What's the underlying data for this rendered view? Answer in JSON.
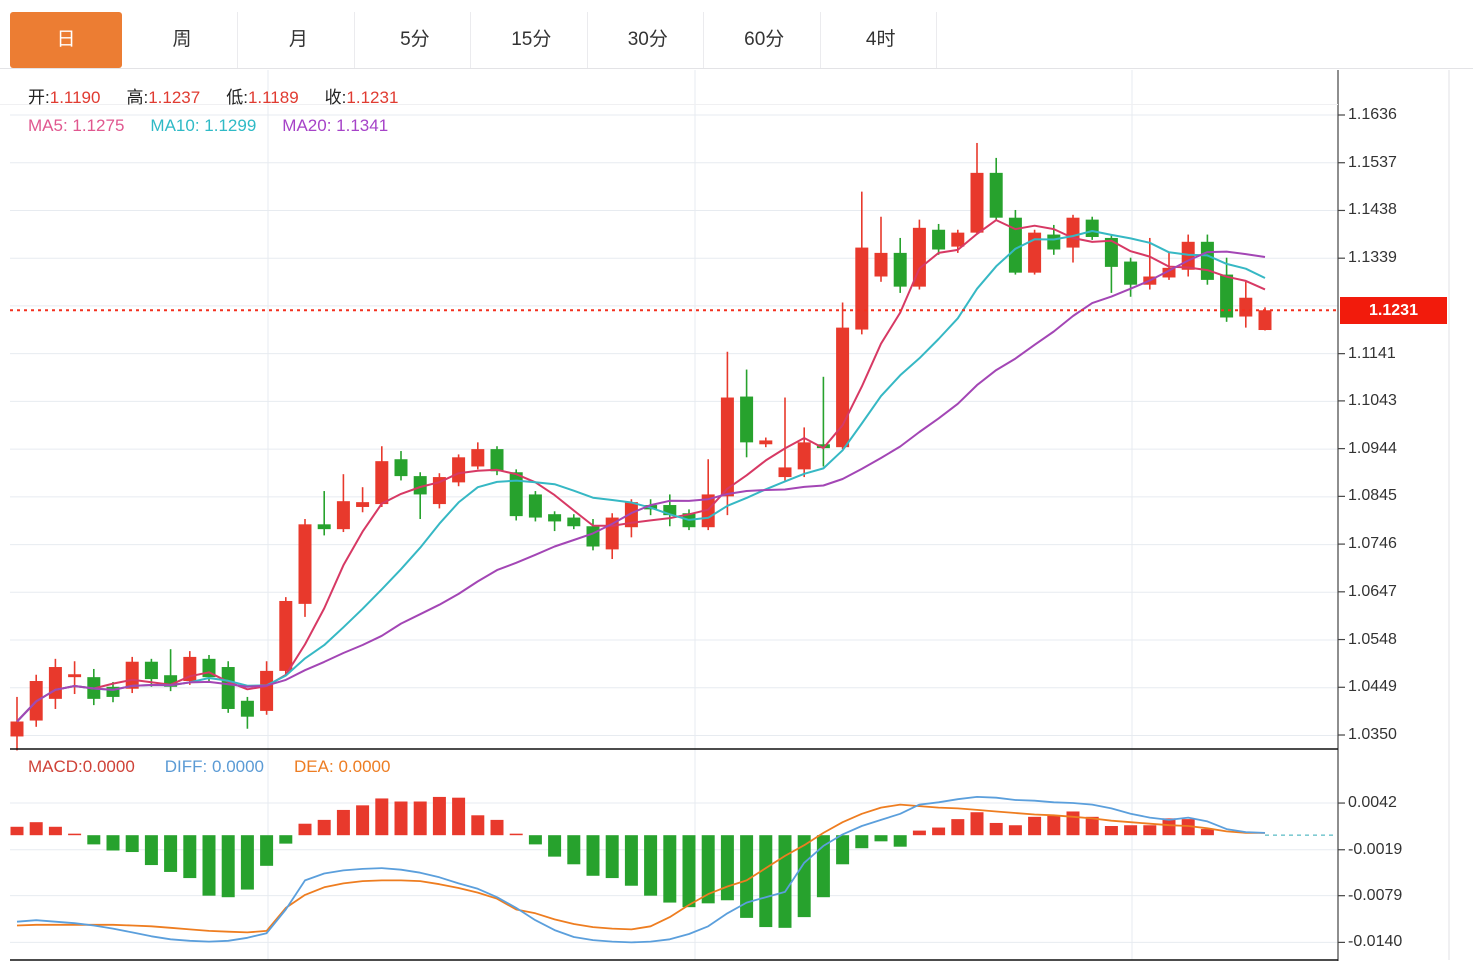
{
  "tabs": {
    "items": [
      {
        "label": "日",
        "active": true
      },
      {
        "label": "周",
        "active": false
      },
      {
        "label": "月",
        "active": false
      },
      {
        "label": "5分",
        "active": false
      },
      {
        "label": "15分",
        "active": false
      },
      {
        "label": "30分",
        "active": false
      },
      {
        "label": "60分",
        "active": false
      },
      {
        "label": "4时",
        "active": false
      }
    ]
  },
  "ohlc": {
    "o_label": "开:",
    "o": "1.1190",
    "h_label": "高:",
    "h": "1.1237",
    "l_label": "低:",
    "l": "1.1189",
    "c_label": "收:",
    "c": "1.1231"
  },
  "ma_legend": {
    "ma5_label": "MA5:",
    "ma5": "1.1275",
    "ma10_label": "MA10:",
    "ma10": "1.1299",
    "ma20_label": "MA20:",
    "ma20": "1.1341"
  },
  "macd_legend": {
    "macd_label": "MACD:",
    "macd": "0.0000",
    "diff_label": "DIFF:",
    "diff": "0.0000",
    "dea_label": "DEA:",
    "dea": "0.0000"
  },
  "price_axis": {
    "ticks": [
      "1.1636",
      "1.1537",
      "1.1438",
      "1.1339",
      "1.1141",
      "1.1043",
      "1.0944",
      "1.0845",
      "1.0746",
      "1.0647",
      "1.0548",
      "1.0449",
      "1.0350"
    ],
    "last_price_tag": "1.1231"
  },
  "macd_axis": {
    "ticks": [
      "0.0042",
      "-0.0019",
      "-0.0079",
      "-0.0140"
    ]
  },
  "colors": {
    "up": "#e8392c",
    "down": "#27a22d",
    "ma5": "#d73964",
    "ma10": "#36b8c4",
    "ma20": "#a346b5",
    "diff_line": "#5b9fdc",
    "dea_line": "#ee7d20",
    "last_price_line": "#f3301f",
    "tag_bg": "#f21b0c",
    "active_tab": "#ec7d33",
    "grid": "#e7ebf0",
    "axis": "#444444"
  },
  "chart_data": {
    "type": "candlestick",
    "title": "",
    "panels": [
      "price",
      "macd"
    ],
    "price_panel": {
      "ylim": [
        1.03,
        1.166
      ],
      "grid_step": 0.0099,
      "grid_top": 1.1636,
      "last_price": 1.1231,
      "ma_periods": [
        5,
        10,
        20
      ],
      "candles": [
        [
          1.0347,
          1.0429,
          1.0318,
          1.0378
        ],
        [
          1.038,
          1.0475,
          1.0367,
          1.0462
        ],
        [
          1.0425,
          1.0508,
          1.0404,
          1.0491
        ],
        [
          1.047,
          1.0503,
          1.0435,
          1.0476
        ],
        [
          1.047,
          1.0487,
          1.0412,
          1.0425
        ],
        [
          1.045,
          1.046,
          1.0418,
          1.0429
        ],
        [
          1.0446,
          1.0512,
          1.0437,
          1.0502
        ],
        [
          1.0502,
          1.0508,
          1.045,
          1.0466
        ],
        [
          1.0474,
          1.0528,
          1.0441,
          1.045
        ],
        [
          1.0462,
          1.0524,
          1.0454,
          1.0512
        ],
        [
          1.0508,
          1.0516,
          1.0462,
          1.047
        ],
        [
          1.0491,
          1.0503,
          1.0396,
          1.0404
        ],
        [
          1.0421,
          1.0429,
          1.0363,
          1.0388
        ],
        [
          1.04,
          1.0503,
          1.0392,
          1.0483
        ],
        [
          1.0483,
          1.0636,
          1.0475,
          1.0628
        ],
        [
          1.0622,
          1.0798,
          1.0595,
          1.0787
        ],
        [
          1.0787,
          1.0856,
          1.0764,
          1.0777
        ],
        [
          1.0777,
          1.0891,
          1.0771,
          1.0835
        ],
        [
          1.0823,
          1.0864,
          1.0812,
          1.0833
        ],
        [
          1.0829,
          1.0949,
          1.0823,
          1.0918
        ],
        [
          1.0922,
          1.0939,
          1.0878,
          1.0887
        ],
        [
          1.0887,
          1.0895,
          1.0798,
          1.0849
        ],
        [
          1.0829,
          1.0893,
          1.082,
          1.0885
        ],
        [
          1.0874,
          1.0932,
          1.0866,
          1.0926
        ],
        [
          1.0907,
          1.0957,
          1.0901,
          1.0943
        ],
        [
          1.0943,
          1.0949,
          1.0889,
          1.0897
        ],
        [
          1.0895,
          1.0901,
          1.0795,
          1.0804
        ],
        [
          1.0849,
          1.0856,
          1.0793,
          1.0801
        ],
        [
          1.0808,
          1.0814,
          1.0773,
          1.0793
        ],
        [
          1.0801,
          1.0808,
          1.0777,
          1.0783
        ],
        [
          1.0783,
          1.0798,
          1.0733,
          1.0741
        ],
        [
          1.0735,
          1.081,
          1.0715,
          1.0801
        ],
        [
          1.0781,
          1.0839,
          1.076,
          1.0833
        ],
        [
          1.0827,
          1.0839,
          1.0806,
          1.0818
        ],
        [
          1.0827,
          1.0849,
          1.0783,
          1.0806
        ],
        [
          1.081,
          1.0818,
          1.0775,
          1.0781
        ],
        [
          1.0781,
          1.0922,
          1.0775,
          1.0849
        ],
        [
          1.0845,
          1.1145,
          1.0806,
          1.105
        ],
        [
          1.1052,
          1.1108,
          1.0926,
          1.0957
        ],
        [
          1.0953,
          1.0967,
          1.0947,
          1.0961
        ],
        [
          1.0885,
          1.105,
          1.0878,
          1.0905
        ],
        [
          1.0901,
          1.0988,
          1.0885,
          1.0957
        ],
        [
          1.0953,
          1.1093,
          1.0907,
          1.0945
        ],
        [
          1.0947,
          1.1247,
          1.0943,
          1.1195
        ],
        [
          1.1191,
          1.1477,
          1.1181,
          1.1361
        ],
        [
          1.1301,
          1.1425,
          1.129,
          1.135
        ],
        [
          1.135,
          1.1381,
          1.1267,
          1.128
        ],
        [
          1.128,
          1.1419,
          1.1274,
          1.1402
        ],
        [
          1.1398,
          1.141,
          1.1346,
          1.1357
        ],
        [
          1.1363,
          1.1398,
          1.135,
          1.1392
        ],
        [
          1.1392,
          1.1578,
          1.1388,
          1.1516
        ],
        [
          1.1516,
          1.1547,
          1.1419,
          1.1423
        ],
        [
          1.1423,
          1.1439,
          1.1305,
          1.1309
        ],
        [
          1.1309,
          1.1398,
          1.1305,
          1.1392
        ],
        [
          1.1388,
          1.1408,
          1.1346,
          1.1357
        ],
        [
          1.1361,
          1.1429,
          1.133,
          1.1423
        ],
        [
          1.1419,
          1.1425,
          1.1377,
          1.1383
        ],
        [
          1.1381,
          1.1388,
          1.1267,
          1.1321
        ],
        [
          1.1332,
          1.134,
          1.1259,
          1.1284
        ],
        [
          1.1284,
          1.1381,
          1.1274,
          1.1301
        ],
        [
          1.1299,
          1.135,
          1.1294,
          1.1319
        ],
        [
          1.1315,
          1.1388,
          1.1301,
          1.1373
        ],
        [
          1.1373,
          1.1388,
          1.1284,
          1.1294
        ],
        [
          1.1305,
          1.134,
          1.1207,
          1.1216
        ],
        [
          1.1218,
          1.129,
          1.1195,
          1.1257
        ],
        [
          1.119,
          1.1237,
          1.1189,
          1.1231
        ]
      ]
    },
    "macd_panel": {
      "ylim": [
        -0.015,
        0.006
      ],
      "hist": [
        0.0011,
        0.0017,
        0.0011,
        0.0002,
        -0.0012,
        -0.002,
        -0.0022,
        -0.0039,
        -0.0048,
        -0.0056,
        -0.0079,
        -0.0081,
        -0.0071,
        -0.004,
        -0.0011,
        0.0015,
        0.002,
        0.0033,
        0.0039,
        0.0048,
        0.0044,
        0.0044,
        0.005,
        0.0049,
        0.0026,
        0.002,
        0.0002,
        -0.0012,
        -0.0028,
        -0.0038,
        -0.0053,
        -0.0056,
        -0.0066,
        -0.0079,
        -0.0088,
        -0.0094,
        -0.0089,
        -0.0085,
        -0.0108,
        -0.012,
        -0.0121,
        -0.0107,
        -0.0081,
        -0.0038,
        -0.0017,
        -0.0008,
        -0.0015,
        0.0006,
        0.001,
        0.0021,
        0.003,
        0.0016,
        0.0013,
        0.0024,
        0.0026,
        0.0031,
        0.0024,
        0.0012,
        0.0013,
        0.0013,
        0.0022,
        0.0021,
        0.0008,
        0,
        0,
        0
      ],
      "diff": [
        -0.0113,
        -0.0111,
        -0.0113,
        -0.0115,
        -0.0118,
        -0.0122,
        -0.0127,
        -0.0132,
        -0.0136,
        -0.0138,
        -0.0139,
        -0.0138,
        -0.0134,
        -0.0128,
        -0.0097,
        -0.0059,
        -0.005,
        -0.0046,
        -0.0044,
        -0.0043,
        -0.0045,
        -0.0049,
        -0.0055,
        -0.0063,
        -0.007,
        -0.0081,
        -0.0095,
        -0.0111,
        -0.0124,
        -0.0133,
        -0.0137,
        -0.0139,
        -0.014,
        -0.0139,
        -0.0136,
        -0.0129,
        -0.0119,
        -0.0102,
        -0.0088,
        -0.0081,
        -0.0074,
        -0.0036,
        -0.0014,
        0.0001,
        0.0012,
        0.002,
        0.0028,
        0.004,
        0.0043,
        0.0047,
        0.005,
        0.0049,
        0.0046,
        0.0045,
        0.0043,
        0.0042,
        0.004,
        0.0035,
        0.0028,
        0.0023,
        0.002,
        0.0023,
        0.0018,
        0.0008,
        0.0004,
        0.0003
      ],
      "dea": [
        -0.0118,
        -0.0117,
        -0.0117,
        -0.0117,
        -0.0117,
        -0.0117,
        -0.0118,
        -0.0119,
        -0.0121,
        -0.0123,
        -0.0125,
        -0.0126,
        -0.0127,
        -0.0125,
        -0.0095,
        -0.0078,
        -0.0068,
        -0.0063,
        -0.006,
        -0.0059,
        -0.0059,
        -0.006,
        -0.0064,
        -0.0069,
        -0.0075,
        -0.0083,
        -0.0097,
        -0.0102,
        -0.011,
        -0.0116,
        -0.012,
        -0.0122,
        -0.0123,
        -0.0119,
        -0.0107,
        -0.0091,
        -0.0077,
        -0.0067,
        -0.0059,
        -0.0043,
        -0.0027,
        -0.0013,
        0.0003,
        0.0017,
        0.0028,
        0.0036,
        0.004,
        0.0038,
        0.0036,
        0.0035,
        0.0033,
        0.0031,
        0.0029,
        0.0027,
        0.0026,
        0.0024,
        0.0022,
        0.0019,
        0.0017,
        0.0015,
        0.0013,
        0.0012,
        0.0009,
        0.0005,
        0.0003,
        0.0003
      ]
    }
  }
}
